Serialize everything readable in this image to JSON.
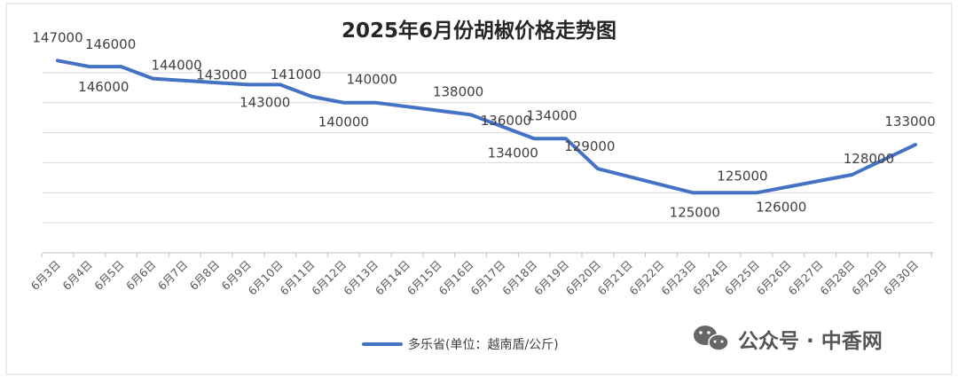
{
  "chart_data": {
    "type": "line",
    "title": "2025年6月份胡椒价格走势图",
    "categories": [
      "6月3日",
      "6月4日",
      "6月5日",
      "6月6日",
      "6月7日",
      "6月8日",
      "6月9日",
      "6月10日",
      "6月11日",
      "6月12日",
      "6月13日",
      "6月14日",
      "6月15日",
      "6月16日",
      "6月17日",
      "6月18日",
      "6月19日",
      "6月20日",
      "6月21日",
      "6月22日",
      "6月23日",
      "6月24日",
      "6月25日",
      "6月26日",
      "6月27日",
      "6月28日",
      "6月29日",
      "6月30日"
    ],
    "series": [
      {
        "name": "多乐省(单位：越南盾/公斤)",
        "color": "#4472C4",
        "values": [
          147000,
          146000,
          146000,
          144000,
          null,
          null,
          143000,
          143000,
          141000,
          140000,
          140000,
          null,
          null,
          138000,
          136000,
          134000,
          134000,
          129000,
          null,
          null,
          125000,
          125000,
          125000,
          126000,
          null,
          128000,
          null,
          133000
        ],
        "labels": [
          "147000",
          "146000",
          "146000",
          "144000",
          null,
          null,
          "143000",
          "143000",
          "141000",
          "140000",
          "140000",
          null,
          null,
          "138000",
          "136000",
          "134000",
          "134000",
          "129000",
          null,
          null,
          "125000",
          null,
          "125000",
          "126000",
          null,
          "128000",
          null,
          "133000"
        ]
      }
    ],
    "ylim": [
      115000,
      150000
    ],
    "grid": true,
    "legend_position": "bottom"
  },
  "watermark": {
    "text": "公众号 · 中香网",
    "icon": "wechat-icon"
  }
}
